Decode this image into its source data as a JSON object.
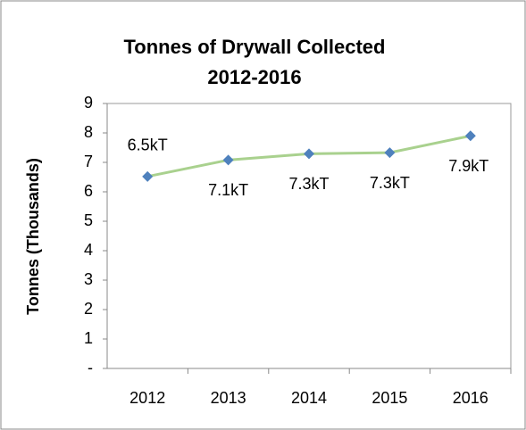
{
  "chart_data": {
    "type": "line",
    "title": "Tonnes of Drywall Collected 2012-2016",
    "y_label": "Tonnes (Thousands)",
    "categories": [
      "2012",
      "2013",
      "2014",
      "2015",
      "2016"
    ],
    "series": [
      {
        "name": "Tonnes",
        "color": "#a9d18e",
        "marker_color": "#4f81bd",
        "values": [
          6.52,
          7.08,
          7.29,
          7.33,
          7.9
        ],
        "value_labels": [
          "6.5kT",
          "7.1kT",
          "7.3kT",
          "7.3kT",
          "7.9kT"
        ]
      }
    ],
    "ylim": [
      0,
      9
    ],
    "yticks": [
      {
        "value": 0,
        "label": "-"
      },
      1,
      2,
      3,
      4,
      5,
      6,
      7,
      8,
      9
    ]
  }
}
